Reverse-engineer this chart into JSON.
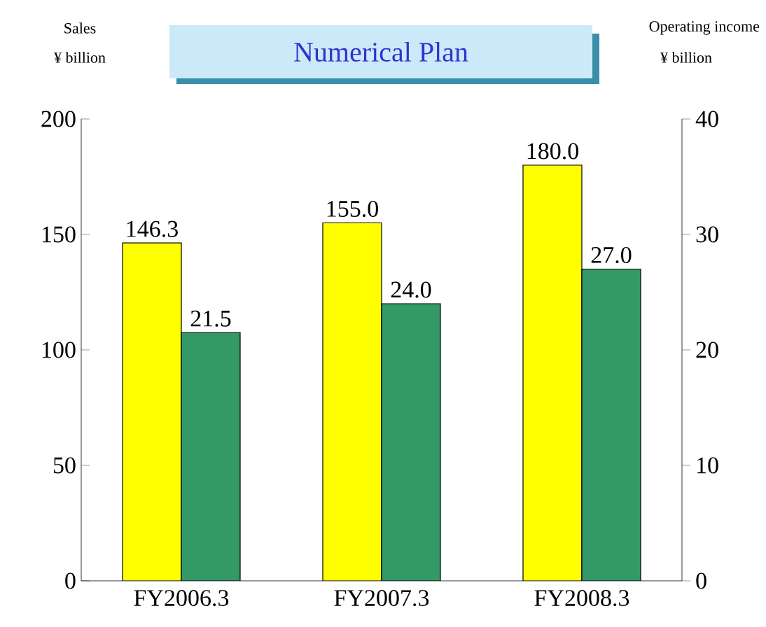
{
  "chart_data": {
    "type": "bar",
    "title": "Numerical Plan",
    "annotations": [
      "Sales",
      "¥ billion",
      "Operating income",
      "¥ billion"
    ],
    "categories": [
      "FY2006.3",
      "FY2007.3",
      "FY2008.3"
    ],
    "series": [
      {
        "name": null,
        "color": "#ffff00",
        "values": [
          146.3,
          155.0,
          180.0
        ],
        "value_labels": [
          "146.3",
          "155.0",
          "180.0"
        ]
      },
      {
        "name": null,
        "color": "#339966",
        "values": [
          21.5,
          24.0,
          27.0
        ],
        "value_labels": [
          "21.5",
          "24.0",
          "27.0"
        ],
        "axis": "y2"
      }
    ],
    "ylim": [
      0,
      200
    ],
    "yticks": [
      0,
      50,
      100,
      150,
      200
    ],
    "y2lim": [
      0,
      40
    ],
    "y2ticks": [
      0,
      10,
      20,
      30,
      40
    ],
    "grid": false,
    "legend": false
  }
}
